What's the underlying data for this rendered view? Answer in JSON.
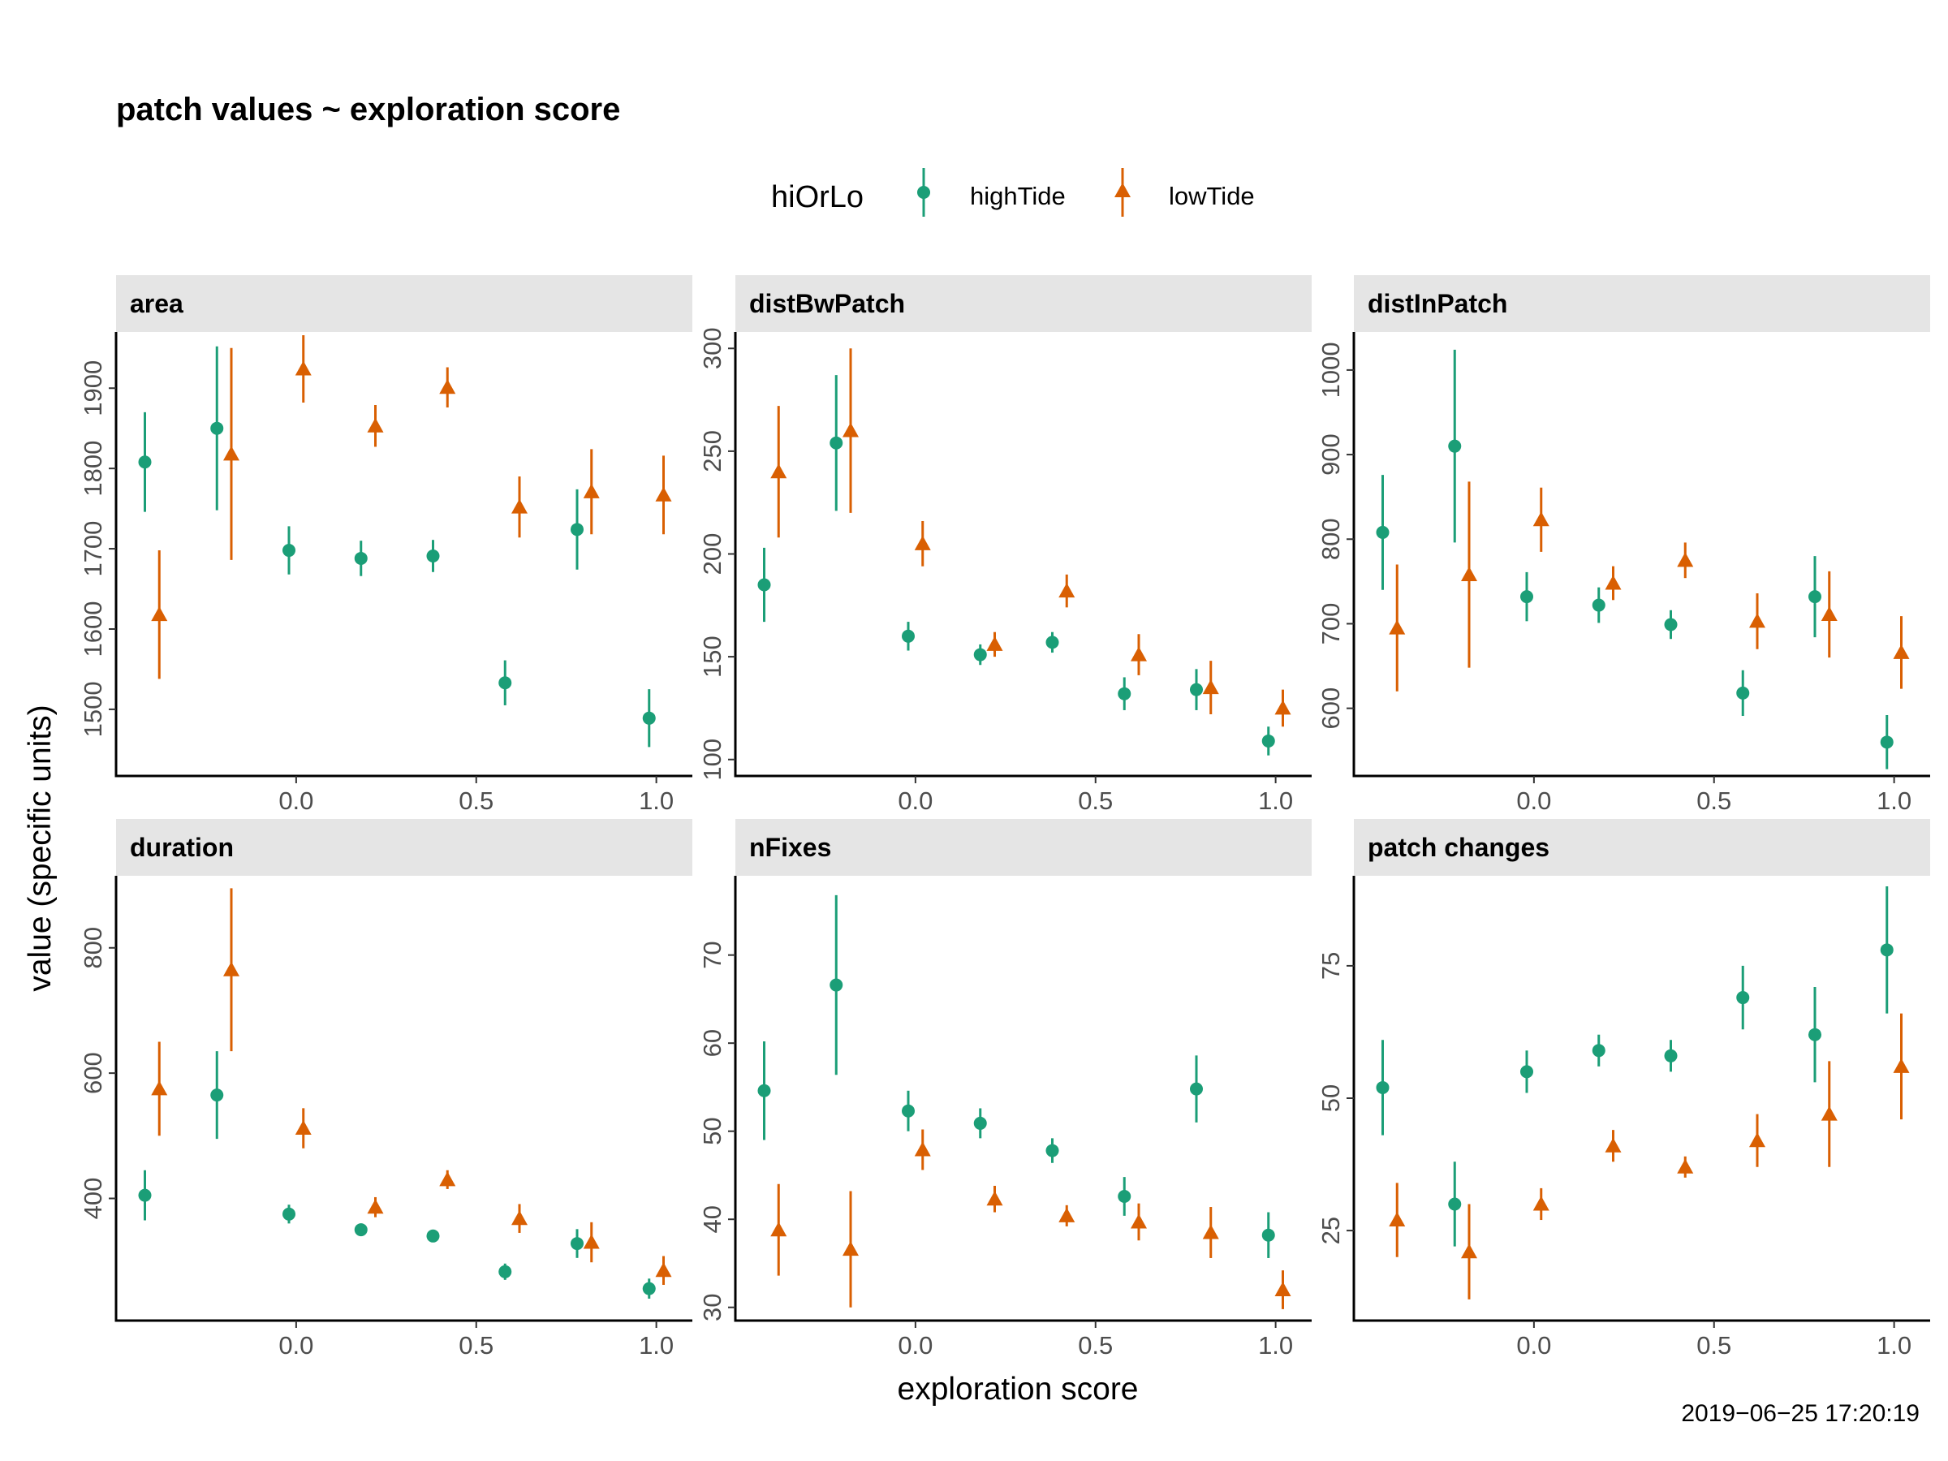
{
  "figure": {
    "title": "patch values ~ exploration score",
    "caption": "2019−06−25 17:20:19"
  },
  "colors": {
    "highTide": "#1b9e77",
    "lowTide": "#d95f02",
    "strip": "#e5e5e5"
  },
  "chart_data": {
    "type": "scatter",
    "subtype": "faceted point-range (mean with error bars)",
    "xlabel": "exploration score",
    "ylabel": "value (specific units)",
    "legend": {
      "title": "hiOrLo",
      "position": "top",
      "entries": [
        {
          "name": "highTide",
          "marker": "circle"
        },
        {
          "name": "lowTide",
          "marker": "triangle"
        }
      ]
    },
    "grid": false,
    "x_ticks": [
      0.0,
      0.5,
      1.0
    ],
    "x_tick_labels": [
      "0.0",
      "0.5",
      "1.0"
    ],
    "xlim": [
      -0.5,
      1.1
    ],
    "x_dodge": 0.02,
    "facets": [
      {
        "name": "area",
        "ylim": [
          1417,
          1970
        ],
        "y_ticks": [
          1500,
          1600,
          1700,
          1800,
          1900
        ],
        "series": [
          {
            "name": "highTide",
            "points": [
              {
                "x": -0.4,
                "y": 1808,
                "lo": 1746,
                "hi": 1870
              },
              {
                "x": -0.2,
                "y": 1850,
                "lo": 1748,
                "hi": 1952
              },
              {
                "x": 0.0,
                "y": 1698,
                "lo": 1668,
                "hi": 1728
              },
              {
                "x": 0.2,
                "y": 1688,
                "lo": 1666,
                "hi": 1710
              },
              {
                "x": 0.4,
                "y": 1691,
                "lo": 1671,
                "hi": 1711
              },
              {
                "x": 0.6,
                "y": 1533,
                "lo": 1505,
                "hi": 1561
              },
              {
                "x": 0.8,
                "y": 1724,
                "lo": 1674,
                "hi": 1774
              },
              {
                "x": 1.0,
                "y": 1489,
                "lo": 1453,
                "hi": 1525
              }
            ]
          },
          {
            "name": "lowTide",
            "points": [
              {
                "x": -0.4,
                "y": 1618,
                "lo": 1538,
                "hi": 1698
              },
              {
                "x": -0.2,
                "y": 1818,
                "lo": 1686,
                "hi": 1950
              },
              {
                "x": 0.0,
                "y": 1924,
                "lo": 1882,
                "hi": 1966
              },
              {
                "x": 0.2,
                "y": 1853,
                "lo": 1827,
                "hi": 1879
              },
              {
                "x": 0.4,
                "y": 1901,
                "lo": 1876,
                "hi": 1926
              },
              {
                "x": 0.6,
                "y": 1752,
                "lo": 1714,
                "hi": 1790
              },
              {
                "x": 0.8,
                "y": 1771,
                "lo": 1718,
                "hi": 1824
              },
              {
                "x": 1.0,
                "y": 1767,
                "lo": 1718,
                "hi": 1816
              }
            ]
          }
        ]
      },
      {
        "name": "distBwPatch",
        "ylim": [
          92,
          308
        ],
        "y_ticks": [
          100,
          150,
          200,
          250,
          300
        ],
        "series": [
          {
            "name": "highTide",
            "points": [
              {
                "x": -0.4,
                "y": 185,
                "lo": 167,
                "hi": 203
              },
              {
                "x": -0.2,
                "y": 254,
                "lo": 221,
                "hi": 287
              },
              {
                "x": 0.0,
                "y": 160,
                "lo": 153,
                "hi": 167
              },
              {
                "x": 0.2,
                "y": 151,
                "lo": 146,
                "hi": 156
              },
              {
                "x": 0.4,
                "y": 157,
                "lo": 152,
                "hi": 162
              },
              {
                "x": 0.6,
                "y": 132,
                "lo": 124,
                "hi": 140
              },
              {
                "x": 0.8,
                "y": 134,
                "lo": 124,
                "hi": 144
              },
              {
                "x": 1.0,
                "y": 109,
                "lo": 102,
                "hi": 116
              }
            ]
          },
          {
            "name": "lowTide",
            "points": [
              {
                "x": -0.4,
                "y": 240,
                "lo": 208,
                "hi": 272
              },
              {
                "x": -0.2,
                "y": 260,
                "lo": 220,
                "hi": 300
              },
              {
                "x": 0.0,
                "y": 205,
                "lo": 194,
                "hi": 216
              },
              {
                "x": 0.2,
                "y": 156,
                "lo": 150,
                "hi": 162
              },
              {
                "x": 0.4,
                "y": 182,
                "lo": 174,
                "hi": 190
              },
              {
                "x": 0.6,
                "y": 151,
                "lo": 141,
                "hi": 161
              },
              {
                "x": 0.8,
                "y": 135,
                "lo": 122,
                "hi": 148
              },
              {
                "x": 1.0,
                "y": 125,
                "lo": 116,
                "hi": 134
              }
            ]
          }
        ]
      },
      {
        "name": "distInPatch",
        "ylim": [
          520,
          1045
        ],
        "y_ticks": [
          600,
          700,
          800,
          900,
          1000
        ],
        "series": [
          {
            "name": "highTide",
            "points": [
              {
                "x": -0.4,
                "y": 808,
                "lo": 740,
                "hi": 876
              },
              {
                "x": -0.2,
                "y": 910,
                "lo": 796,
                "hi": 1024
              },
              {
                "x": 0.0,
                "y": 732,
                "lo": 703,
                "hi": 761
              },
              {
                "x": 0.2,
                "y": 722,
                "lo": 701,
                "hi": 743
              },
              {
                "x": 0.4,
                "y": 699,
                "lo": 682,
                "hi": 716
              },
              {
                "x": 0.6,
                "y": 618,
                "lo": 591,
                "hi": 645
              },
              {
                "x": 0.8,
                "y": 732,
                "lo": 684,
                "hi": 780
              },
              {
                "x": 1.0,
                "y": 560,
                "lo": 528,
                "hi": 592
              }
            ]
          },
          {
            "name": "lowTide",
            "points": [
              {
                "x": -0.4,
                "y": 695,
                "lo": 620,
                "hi": 770
              },
              {
                "x": -0.2,
                "y": 758,
                "lo": 648,
                "hi": 868
              },
              {
                "x": 0.0,
                "y": 823,
                "lo": 785,
                "hi": 861
              },
              {
                "x": 0.2,
                "y": 748,
                "lo": 728,
                "hi": 768
              },
              {
                "x": 0.4,
                "y": 775,
                "lo": 754,
                "hi": 796
              },
              {
                "x": 0.6,
                "y": 703,
                "lo": 670,
                "hi": 736
              },
              {
                "x": 0.8,
                "y": 711,
                "lo": 660,
                "hi": 762
              },
              {
                "x": 1.0,
                "y": 666,
                "lo": 623,
                "hi": 709
              }
            ]
          }
        ]
      },
      {
        "name": "duration",
        "ylim": [
          205,
          915
        ],
        "y_ticks": [
          400,
          600,
          800
        ],
        "series": [
          {
            "name": "highTide",
            "points": [
              {
                "x": -0.4,
                "y": 405,
                "lo": 365,
                "hi": 445
              },
              {
                "x": -0.2,
                "y": 565,
                "lo": 495,
                "hi": 635
              },
              {
                "x": 0.0,
                "y": 375,
                "lo": 360,
                "hi": 390
              },
              {
                "x": 0.2,
                "y": 350,
                "lo": 340,
                "hi": 360
              },
              {
                "x": 0.4,
                "y": 340,
                "lo": 332,
                "hi": 348
              },
              {
                "x": 0.6,
                "y": 283,
                "lo": 270,
                "hi": 296
              },
              {
                "x": 0.8,
                "y": 328,
                "lo": 305,
                "hi": 351
              },
              {
                "x": 1.0,
                "y": 256,
                "lo": 240,
                "hi": 272
              }
            ]
          },
          {
            "name": "lowTide",
            "points": [
              {
                "x": -0.4,
                "y": 575,
                "lo": 500,
                "hi": 650
              },
              {
                "x": -0.2,
                "y": 765,
                "lo": 635,
                "hi": 895
              },
              {
                "x": 0.0,
                "y": 512,
                "lo": 480,
                "hi": 544
              },
              {
                "x": 0.2,
                "y": 386,
                "lo": 370,
                "hi": 402
              },
              {
                "x": 0.4,
                "y": 430,
                "lo": 415,
                "hi": 445
              },
              {
                "x": 0.6,
                "y": 368,
                "lo": 345,
                "hi": 391
              },
              {
                "x": 0.8,
                "y": 330,
                "lo": 298,
                "hi": 362
              },
              {
                "x": 1.0,
                "y": 285,
                "lo": 262,
                "hi": 308
              }
            ]
          }
        ]
      },
      {
        "name": "nFixes",
        "ylim": [
          28.5,
          79
        ],
        "y_ticks": [
          30,
          40,
          50,
          60,
          70
        ],
        "series": [
          {
            "name": "highTide",
            "points": [
              {
                "x": -0.4,
                "y": 54.6,
                "lo": 49.0,
                "hi": 60.2
              },
              {
                "x": -0.2,
                "y": 66.6,
                "lo": 56.4,
                "hi": 76.8
              },
              {
                "x": 0.0,
                "y": 52.3,
                "lo": 50.0,
                "hi": 54.6
              },
              {
                "x": 0.2,
                "y": 50.9,
                "lo": 49.2,
                "hi": 52.6
              },
              {
                "x": 0.4,
                "y": 47.8,
                "lo": 46.4,
                "hi": 49.2
              },
              {
                "x": 0.6,
                "y": 42.6,
                "lo": 40.4,
                "hi": 44.8
              },
              {
                "x": 0.8,
                "y": 54.8,
                "lo": 51.0,
                "hi": 58.6
              },
              {
                "x": 1.0,
                "y": 38.2,
                "lo": 35.6,
                "hi": 40.8
              }
            ]
          },
          {
            "name": "lowTide",
            "points": [
              {
                "x": -0.4,
                "y": 38.8,
                "lo": 33.6,
                "hi": 44.0
              },
              {
                "x": -0.2,
                "y": 36.6,
                "lo": 30.0,
                "hi": 43.2
              },
              {
                "x": 0.0,
                "y": 47.9,
                "lo": 45.6,
                "hi": 50.2
              },
              {
                "x": 0.2,
                "y": 42.3,
                "lo": 40.8,
                "hi": 43.8
              },
              {
                "x": 0.4,
                "y": 40.4,
                "lo": 39.2,
                "hi": 41.6
              },
              {
                "x": 0.6,
                "y": 39.7,
                "lo": 37.6,
                "hi": 41.8
              },
              {
                "x": 0.8,
                "y": 38.5,
                "lo": 35.6,
                "hi": 41.4
              },
              {
                "x": 1.0,
                "y": 32.0,
                "lo": 29.8,
                "hi": 34.2
              }
            ]
          }
        ]
      },
      {
        "name": "patch changes",
        "ylim": [
          8,
          92
        ],
        "y_ticks": [
          25,
          50,
          75
        ],
        "series": [
          {
            "name": "highTide",
            "points": [
              {
                "x": -0.4,
                "y": 52,
                "lo": 43,
                "hi": 61
              },
              {
                "x": -0.2,
                "y": 30,
                "lo": 22,
                "hi": 38
              },
              {
                "x": 0.0,
                "y": 55,
                "lo": 51,
                "hi": 59
              },
              {
                "x": 0.2,
                "y": 59,
                "lo": 56,
                "hi": 62
              },
              {
                "x": 0.4,
                "y": 58,
                "lo": 55,
                "hi": 61
              },
              {
                "x": 0.6,
                "y": 69,
                "lo": 63,
                "hi": 75
              },
              {
                "x": 0.8,
                "y": 62,
                "lo": 53,
                "hi": 71
              },
              {
                "x": 1.0,
                "y": 78,
                "lo": 66,
                "hi": 90
              }
            ]
          },
          {
            "name": "lowTide",
            "points": [
              {
                "x": -0.4,
                "y": 27,
                "lo": 20,
                "hi": 34
              },
              {
                "x": -0.2,
                "y": 21,
                "lo": 12,
                "hi": 30
              },
              {
                "x": 0.0,
                "y": 30,
                "lo": 27,
                "hi": 33
              },
              {
                "x": 0.2,
                "y": 41,
                "lo": 38,
                "hi": 44
              },
              {
                "x": 0.4,
                "y": 37,
                "lo": 35,
                "hi": 39
              },
              {
                "x": 0.6,
                "y": 42,
                "lo": 37,
                "hi": 47
              },
              {
                "x": 0.8,
                "y": 47,
                "lo": 37,
                "hi": 57
              },
              {
                "x": 1.0,
                "y": 56,
                "lo": 46,
                "hi": 66
              }
            ]
          }
        ]
      }
    ]
  }
}
